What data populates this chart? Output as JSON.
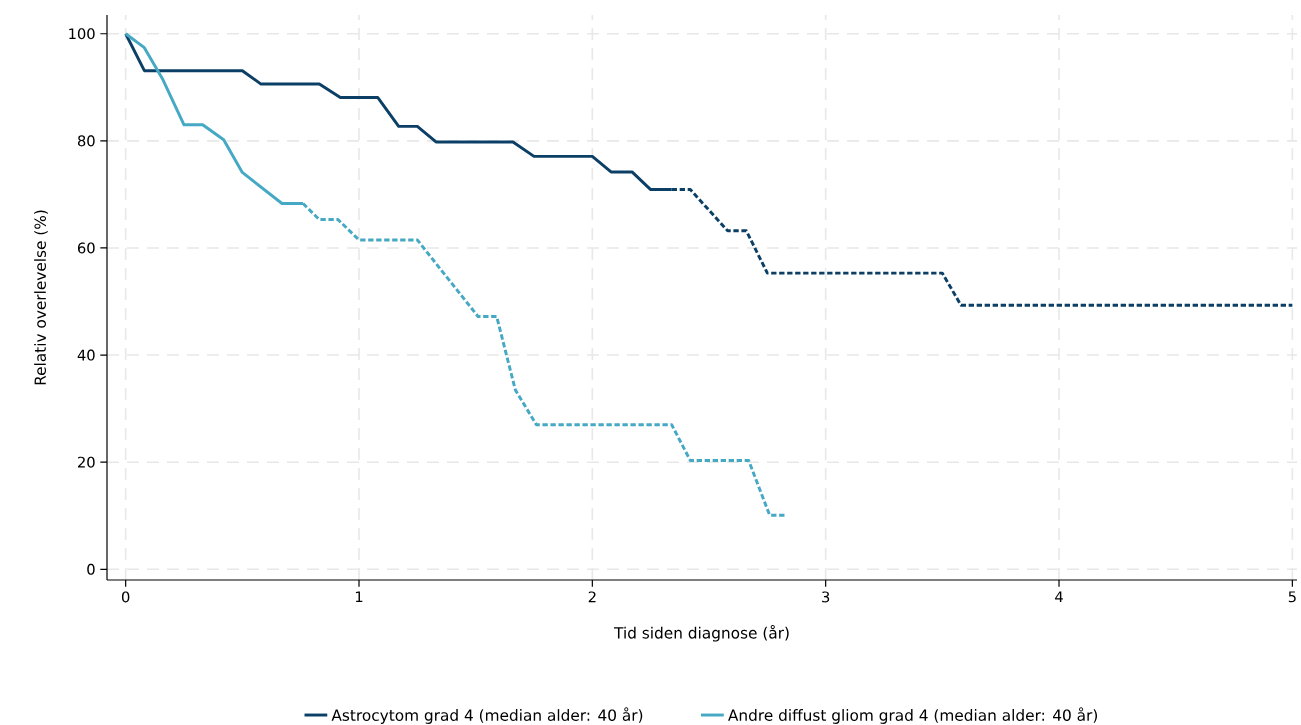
{
  "chart_data": {
    "type": "line",
    "xlabel": "Tid siden diagnose (år)",
    "ylabel": "Relativ overlevelse (%)",
    "xlim": [
      -0.08,
      5.02
    ],
    "ylim": [
      -2,
      103.5
    ],
    "xticks": [
      0,
      1,
      2,
      3,
      4,
      5
    ],
    "yticks": [
      0,
      20,
      40,
      60,
      80,
      100
    ],
    "grid": true,
    "legend": "bottom",
    "marker": "none",
    "series": [
      {
        "name": "Astrocytom grad 4 (median alder: 40 år)",
        "color": "#0b3f66",
        "line_style": "solid",
        "x": [
          0,
          0.08,
          0.5,
          0.58,
          0.83,
          0.92,
          1.08,
          1.17,
          1.25,
          1.33,
          1.66,
          1.75,
          2.0,
          2.08,
          2.17,
          2.25,
          2.34
        ],
        "values": [
          100,
          93.1,
          93.1,
          90.6,
          90.6,
          88.1,
          88.1,
          82.7,
          82.7,
          79.8,
          79.8,
          77.1,
          77.1,
          74.2,
          74.2,
          70.9,
          70.9
        ]
      },
      {
        "color": "#0b3f66",
        "line_style": "dashed",
        "x": [
          2.34,
          2.42,
          2.58,
          2.66,
          2.75,
          3.5,
          3.58,
          5.0
        ],
        "values": [
          70.9,
          70.9,
          63.2,
          63.2,
          55.3,
          55.3,
          49.3,
          49.3
        ]
      },
      {
        "name": "Andre diffust gliom grad 4 (median alder: 40 år)",
        "color": "#45a8c4",
        "line_style": "solid",
        "x": [
          0,
          0.08,
          0.16,
          0.25,
          0.33,
          0.42,
          0.5,
          0.67,
          0.76
        ],
        "values": [
          100,
          97.4,
          91.4,
          83.0,
          83.0,
          80.2,
          74.1,
          68.3,
          68.3
        ]
      },
      {
        "color": "#45a8c4",
        "line_style": "dashed",
        "x": [
          0.76,
          0.83,
          0.91,
          1.0,
          1.25,
          1.51,
          1.59,
          1.67,
          1.76,
          2.34,
          2.42,
          2.67,
          2.76,
          2.83
        ],
        "values": [
          68.3,
          65.3,
          65.3,
          61.5,
          61.5,
          47.2,
          47.2,
          33.5,
          27.0,
          27.0,
          20.3,
          20.3,
          10.1,
          10.1
        ]
      }
    ]
  }
}
